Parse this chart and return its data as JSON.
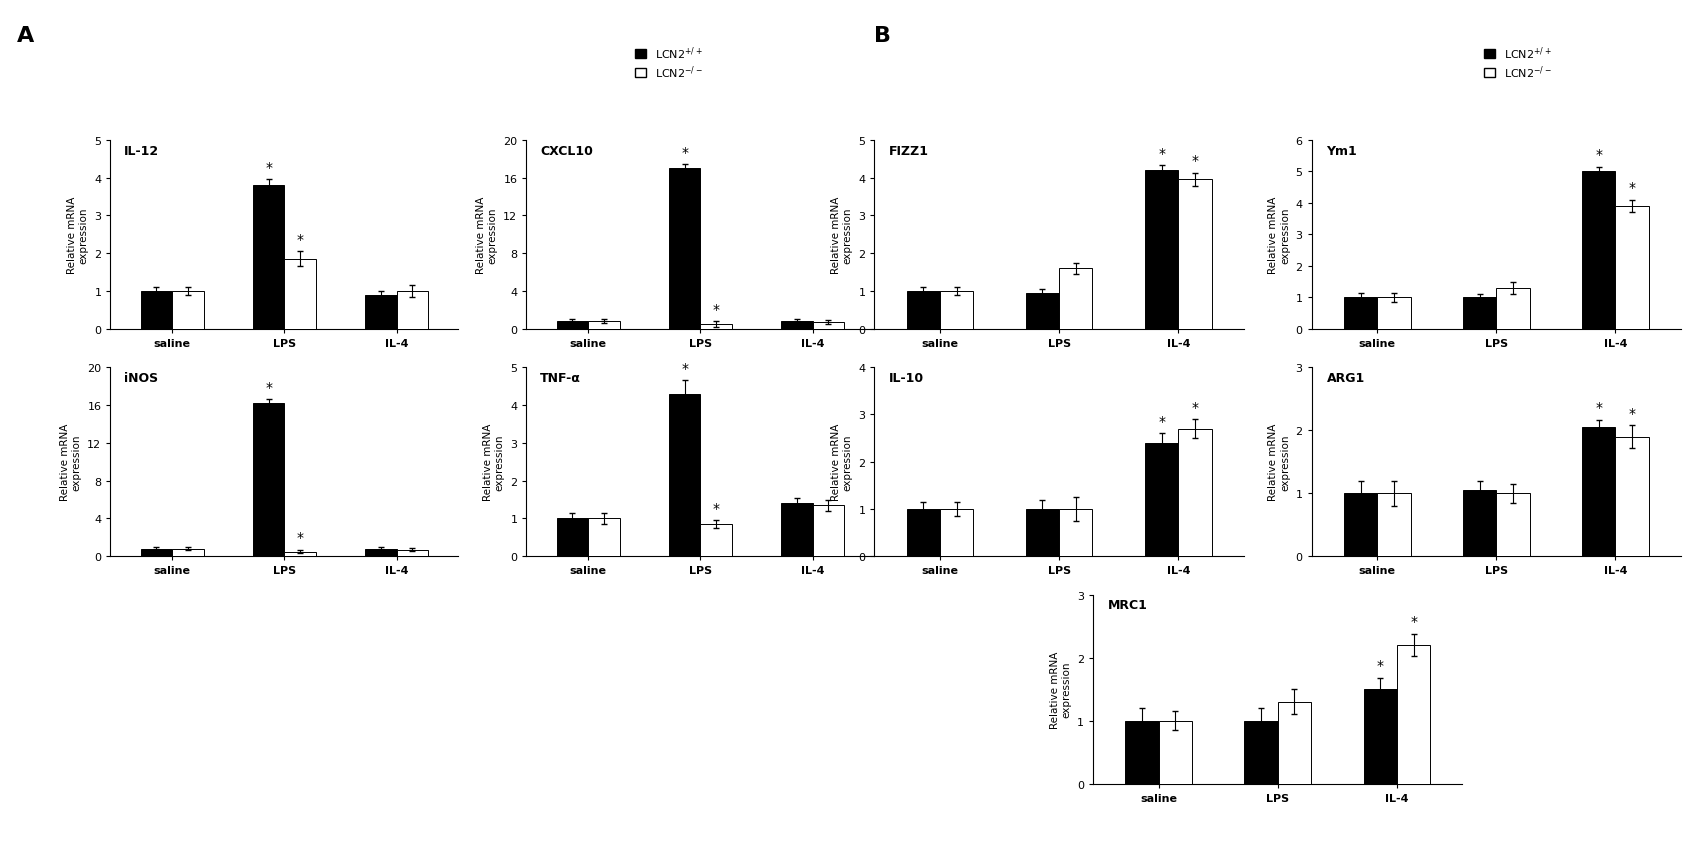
{
  "panel_A": {
    "subplots": [
      {
        "title": "IL-12",
        "ylim": [
          0,
          5
        ],
        "yticks": [
          0,
          1,
          2,
          3,
          4,
          5
        ],
        "wt_values": [
          1.0,
          3.8,
          0.9
        ],
        "ko_values": [
          1.0,
          1.85,
          1.0
        ],
        "wt_errors": [
          0.1,
          0.15,
          0.1
        ],
        "ko_errors": [
          0.1,
          0.2,
          0.15
        ],
        "stars_wt": [
          false,
          true,
          false
        ],
        "stars_ko": [
          false,
          true,
          false
        ]
      },
      {
        "title": "CXCL10",
        "ylim": [
          0,
          20
        ],
        "yticks": [
          0,
          4,
          8,
          12,
          16,
          20
        ],
        "wt_values": [
          0.8,
          17.0,
          0.8
        ],
        "ko_values": [
          0.8,
          0.5,
          0.7
        ],
        "wt_errors": [
          0.2,
          0.4,
          0.2
        ],
        "ko_errors": [
          0.2,
          0.3,
          0.2
        ],
        "stars_wt": [
          false,
          true,
          false
        ],
        "stars_ko": [
          false,
          true,
          false
        ]
      },
      {
        "title": "iNOS",
        "ylim": [
          0,
          20
        ],
        "yticks": [
          0,
          4,
          8,
          12,
          16,
          20
        ],
        "wt_values": [
          0.8,
          16.2,
          0.8
        ],
        "ko_values": [
          0.8,
          0.5,
          0.7
        ],
        "wt_errors": [
          0.15,
          0.4,
          0.15
        ],
        "ko_errors": [
          0.15,
          0.2,
          0.15
        ],
        "stars_wt": [
          false,
          true,
          false
        ],
        "stars_ko": [
          false,
          true,
          false
        ]
      },
      {
        "title": "TNF-α",
        "ylim": [
          0,
          5
        ],
        "yticks": [
          0,
          1,
          2,
          3,
          4,
          5
        ],
        "wt_values": [
          1.0,
          4.3,
          1.4
        ],
        "ko_values": [
          1.0,
          0.85,
          1.35
        ],
        "wt_errors": [
          0.15,
          0.35,
          0.15
        ],
        "ko_errors": [
          0.15,
          0.1,
          0.15
        ],
        "stars_wt": [
          false,
          true,
          false
        ],
        "stars_ko": [
          false,
          true,
          false
        ]
      }
    ]
  },
  "panel_B": {
    "subplots": [
      {
        "title": "FIZZ1",
        "ylim": [
          0,
          5
        ],
        "yticks": [
          0,
          1,
          2,
          3,
          4,
          5
        ],
        "wt_values": [
          1.0,
          0.95,
          4.2
        ],
        "ko_values": [
          1.0,
          1.6,
          3.95
        ],
        "wt_errors": [
          0.1,
          0.1,
          0.12
        ],
        "ko_errors": [
          0.1,
          0.15,
          0.18
        ],
        "stars_wt": [
          false,
          false,
          true
        ],
        "stars_ko": [
          false,
          false,
          true
        ]
      },
      {
        "title": "Ym1",
        "ylim": [
          0,
          6
        ],
        "yticks": [
          0,
          1,
          2,
          3,
          4,
          5,
          6
        ],
        "wt_values": [
          1.0,
          1.0,
          5.0
        ],
        "ko_values": [
          1.0,
          1.3,
          3.9
        ],
        "wt_errors": [
          0.15,
          0.1,
          0.15
        ],
        "ko_errors": [
          0.15,
          0.2,
          0.2
        ],
        "stars_wt": [
          false,
          false,
          true
        ],
        "stars_ko": [
          false,
          false,
          true
        ]
      },
      {
        "title": "IL-10",
        "ylim": [
          0,
          4
        ],
        "yticks": [
          0,
          1,
          2,
          3,
          4
        ],
        "wt_values": [
          1.0,
          1.0,
          2.4
        ],
        "ko_values": [
          1.0,
          1.0,
          2.7
        ],
        "wt_errors": [
          0.15,
          0.2,
          0.2
        ],
        "ko_errors": [
          0.15,
          0.25,
          0.2
        ],
        "stars_wt": [
          false,
          false,
          true
        ],
        "stars_ko": [
          false,
          false,
          true
        ]
      },
      {
        "title": "ARG1",
        "ylim": [
          0,
          3
        ],
        "yticks": [
          0,
          1,
          2,
          3
        ],
        "wt_values": [
          1.0,
          1.05,
          2.05
        ],
        "ko_values": [
          1.0,
          1.0,
          1.9
        ],
        "wt_errors": [
          0.2,
          0.15,
          0.12
        ],
        "ko_errors": [
          0.2,
          0.15,
          0.18
        ],
        "stars_wt": [
          false,
          false,
          true
        ],
        "stars_ko": [
          false,
          false,
          true
        ]
      },
      {
        "title": "MRC1",
        "ylim": [
          0,
          3
        ],
        "yticks": [
          0,
          1,
          2,
          3
        ],
        "wt_values": [
          1.0,
          1.0,
          1.5
        ],
        "ko_values": [
          1.0,
          1.3,
          2.2
        ],
        "wt_errors": [
          0.2,
          0.2,
          0.18
        ],
        "ko_errors": [
          0.15,
          0.2,
          0.18
        ],
        "stars_wt": [
          false,
          false,
          true
        ],
        "stars_ko": [
          false,
          false,
          true
        ]
      }
    ]
  },
  "groups": [
    "saline",
    "LPS",
    "IL-4"
  ],
  "colors": {
    "wt": "#000000",
    "ko": "#ffffff",
    "ko_edge": "#000000"
  },
  "bar_width": 0.28,
  "font_size": 8,
  "tick_fontsize": 8,
  "ylabel_fontsize": 7.5,
  "title_fontsize": 9,
  "star_fontsize": 10,
  "legend_fontsize": 8,
  "panel_label_fontsize": 16
}
